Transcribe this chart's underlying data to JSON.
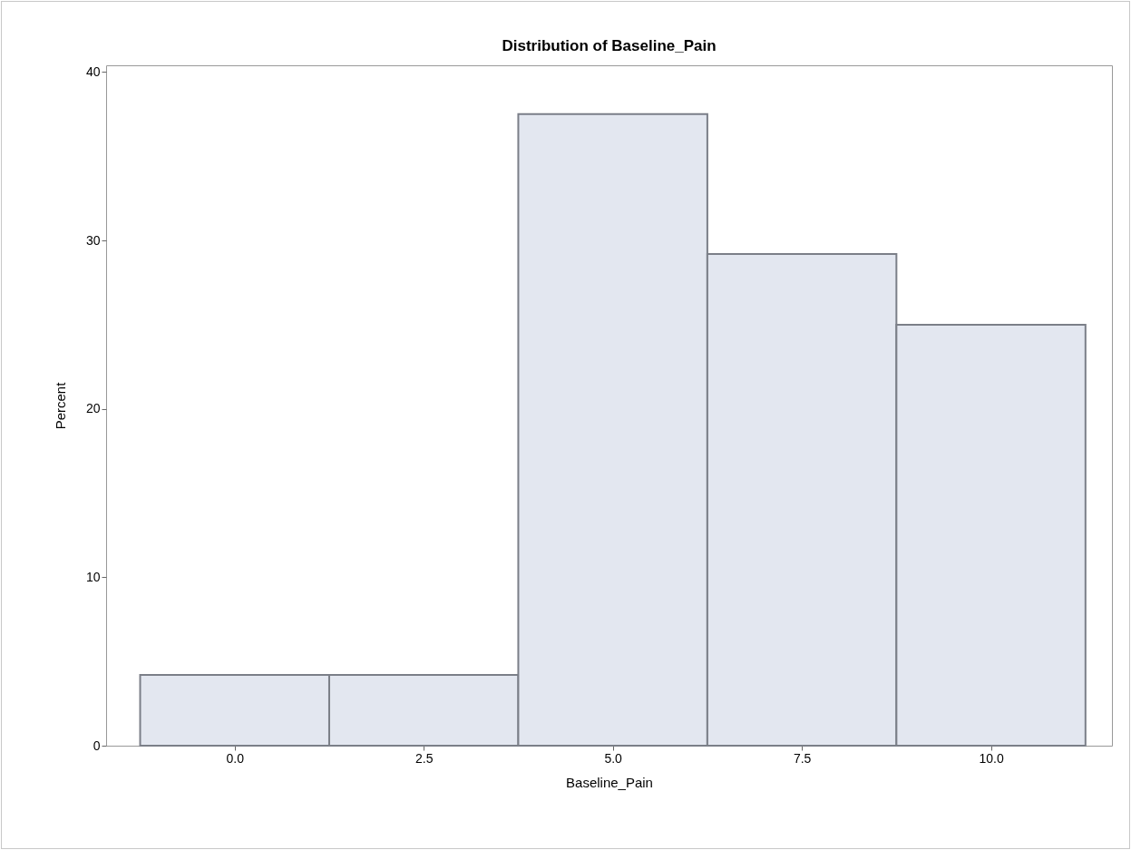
{
  "chart_data": {
    "type": "histogram",
    "title": "Distribution of Baseline_Pain",
    "xlabel": "Baseline_Pain",
    "ylabel": "Percent",
    "bins": [
      -1.25,
      1.25,
      3.75,
      6.25,
      8.75,
      11.25
    ],
    "values": [
      4.2,
      4.2,
      37.5,
      29.2,
      25
    ],
    "color": "#e3e7f0",
    "xlim": [
      -1.7,
      11.6
    ],
    "xticks": [
      {
        "value": 0,
        "label": "0.0"
      },
      {
        "value": 2.5,
        "label": "2.5"
      },
      {
        "value": 5,
        "label": "5.0"
      },
      {
        "value": 7.5,
        "label": "7.5"
      },
      {
        "value": 10,
        "label": "10.0"
      }
    ],
    "ylim": [
      0,
      40.4
    ],
    "yticks": [
      0,
      10,
      20,
      30,
      40
    ],
    "grid": false
  }
}
